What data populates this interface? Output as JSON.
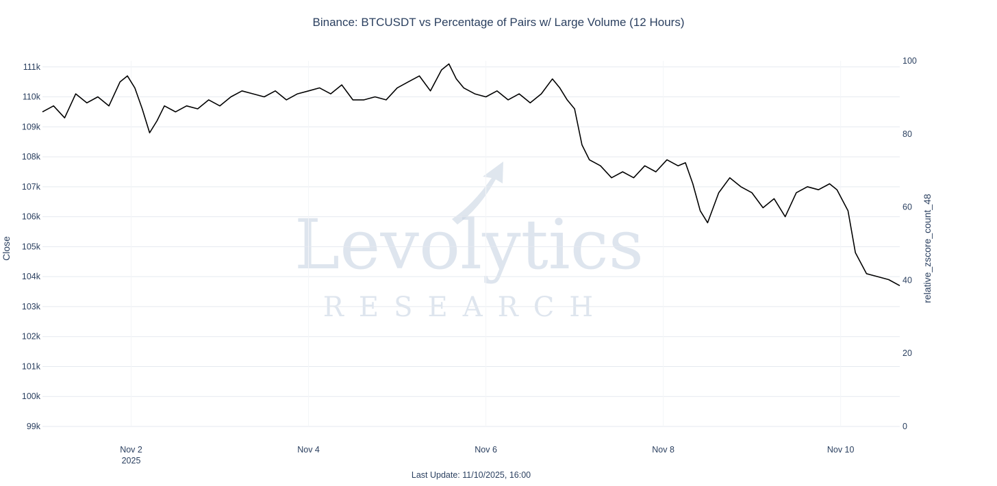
{
  "chart_data": {
    "type": "line",
    "title": "Binance: BTCUSDT vs Percentage of Pairs w/ Large Volume (12 Hours)",
    "footer": "Last Update: 11/10/2025, 16:00",
    "watermark": {
      "main": "Levolytics",
      "sub": "RESEARCH"
    },
    "x_axis": {
      "type": "date",
      "range": [
        "2025-11-01 00:00",
        "2025-11-10 16:00"
      ],
      "ticks": [
        {
          "date": "2025-11-02",
          "label": "Nov 2",
          "sublabel": "2025"
        },
        {
          "date": "2025-11-04",
          "label": "Nov 4",
          "sublabel": ""
        },
        {
          "date": "2025-11-06",
          "label": "Nov 6",
          "sublabel": ""
        },
        {
          "date": "2025-11-08",
          "label": "Nov 8",
          "sublabel": ""
        },
        {
          "date": "2025-11-10",
          "label": "Nov 10",
          "sublabel": ""
        }
      ]
    },
    "y_axis_left": {
      "label": "Close",
      "range": [
        99000,
        111200
      ],
      "ticks": [
        99000,
        100000,
        101000,
        102000,
        103000,
        104000,
        105000,
        106000,
        107000,
        108000,
        109000,
        110000,
        111000
      ],
      "tick_labels": [
        "99k",
        "100k",
        "101k",
        "102k",
        "103k",
        "104k",
        "105k",
        "106k",
        "107k",
        "108k",
        "109k",
        "110k",
        "111k"
      ]
    },
    "y_axis_right": {
      "label": "relative_zscore_count_48",
      "range": [
        0,
        100
      ],
      "ticks": [
        0,
        20,
        40,
        60,
        80,
        100
      ],
      "tick_labels": [
        "0",
        "20",
        "40",
        "60",
        "80",
        "100"
      ]
    },
    "grid": true,
    "colors": {
      "close": "#000000",
      "zscore": "#4a90e2",
      "grid": "#e5e9ef",
      "text": "#2a3f5f"
    },
    "series": [
      {
        "axis": "left",
        "color": "#000000",
        "points": [
          [
            "2025-11-01 00:00",
            109500
          ],
          [
            "2025-11-01 03:00",
            109700
          ],
          [
            "2025-11-01 06:00",
            109300
          ],
          [
            "2025-11-01 09:00",
            110100
          ],
          [
            "2025-11-01 12:00",
            109800
          ],
          [
            "2025-11-01 15:00",
            110000
          ],
          [
            "2025-11-01 18:00",
            109700
          ],
          [
            "2025-11-01 21:00",
            110500
          ],
          [
            "2025-11-01 23:00",
            110700
          ],
          [
            "2025-11-02 01:00",
            110300
          ],
          [
            "2025-11-02 03:00",
            109600
          ],
          [
            "2025-11-02 05:00",
            108800
          ],
          [
            "2025-11-02 07:00",
            109200
          ],
          [
            "2025-11-02 09:00",
            109700
          ],
          [
            "2025-11-02 12:00",
            109500
          ],
          [
            "2025-11-02 15:00",
            109700
          ],
          [
            "2025-11-02 18:00",
            109600
          ],
          [
            "2025-11-02 21:00",
            109900
          ],
          [
            "2025-11-03 00:00",
            109700
          ],
          [
            "2025-11-03 03:00",
            110000
          ],
          [
            "2025-11-03 06:00",
            110200
          ],
          [
            "2025-11-03 09:00",
            110100
          ],
          [
            "2025-11-03 12:00",
            110000
          ],
          [
            "2025-11-03 15:00",
            110200
          ],
          [
            "2025-11-03 18:00",
            109900
          ],
          [
            "2025-11-03 21:00",
            110100
          ],
          [
            "2025-11-04 00:00",
            110200
          ],
          [
            "2025-11-04 03:00",
            110300
          ],
          [
            "2025-11-04 06:00",
            110100
          ],
          [
            "2025-11-04 09:00",
            110400
          ],
          [
            "2025-11-04 12:00",
            109900
          ],
          [
            "2025-11-04 15:00",
            109900
          ],
          [
            "2025-11-04 18:00",
            110000
          ],
          [
            "2025-11-04 21:00",
            109900
          ],
          [
            "2025-11-05 00:00",
            110300
          ],
          [
            "2025-11-05 03:00",
            110500
          ],
          [
            "2025-11-05 06:00",
            110700
          ],
          [
            "2025-11-05 09:00",
            110200
          ],
          [
            "2025-11-05 12:00",
            110900
          ],
          [
            "2025-11-05 14:00",
            111100
          ],
          [
            "2025-11-05 16:00",
            110600
          ],
          [
            "2025-11-05 18:00",
            110300
          ],
          [
            "2025-11-05 21:00",
            110100
          ],
          [
            "2025-11-06 00:00",
            110000
          ],
          [
            "2025-11-06 03:00",
            110200
          ],
          [
            "2025-11-06 06:00",
            109900
          ],
          [
            "2025-11-06 09:00",
            110100
          ],
          [
            "2025-11-06 12:00",
            109800
          ],
          [
            "2025-11-06 15:00",
            110100
          ],
          [
            "2025-11-06 18:00",
            110600
          ],
          [
            "2025-11-06 20:00",
            110300
          ],
          [
            "2025-11-06 22:00",
            109900
          ],
          [
            "2025-11-07 00:00",
            109600
          ],
          [
            "2025-11-07 02:00",
            108400
          ],
          [
            "2025-11-07 04:00",
            107900
          ],
          [
            "2025-11-07 07:00",
            107700
          ],
          [
            "2025-11-07 10:00",
            107300
          ],
          [
            "2025-11-07 13:00",
            107500
          ],
          [
            "2025-11-07 16:00",
            107300
          ],
          [
            "2025-11-07 19:00",
            107700
          ],
          [
            "2025-11-07 22:00",
            107500
          ],
          [
            "2025-11-08 01:00",
            107900
          ],
          [
            "2025-11-08 04:00",
            107700
          ],
          [
            "2025-11-08 06:00",
            107800
          ],
          [
            "2025-11-08 08:00",
            107100
          ],
          [
            "2025-11-08 10:00",
            106200
          ],
          [
            "2025-11-08 12:00",
            105800
          ],
          [
            "2025-11-08 15:00",
            106800
          ],
          [
            "2025-11-08 18:00",
            107300
          ],
          [
            "2025-11-08 21:00",
            107000
          ],
          [
            "2025-11-09 00:00",
            106800
          ],
          [
            "2025-11-09 03:00",
            106300
          ],
          [
            "2025-11-09 06:00",
            106600
          ],
          [
            "2025-11-09 09:00",
            106000
          ],
          [
            "2025-11-09 12:00",
            106800
          ],
          [
            "2025-11-09 15:00",
            107000
          ],
          [
            "2025-11-09 18:00",
            106900
          ],
          [
            "2025-11-09 21:00",
            107100
          ],
          [
            "2025-11-09 23:00",
            106900
          ],
          [
            "2025-11-10 02:00",
            106200
          ],
          [
            "2025-11-10 04:00",
            104800
          ],
          [
            "2025-11-10 07:00",
            104100
          ],
          [
            "2025-11-10 10:00",
            104000
          ],
          [
            "2025-11-10 13:00",
            103900
          ],
          [
            "2025-11-10 16:00",
            103700
          ]
        ]
      }
    ]
  }
}
